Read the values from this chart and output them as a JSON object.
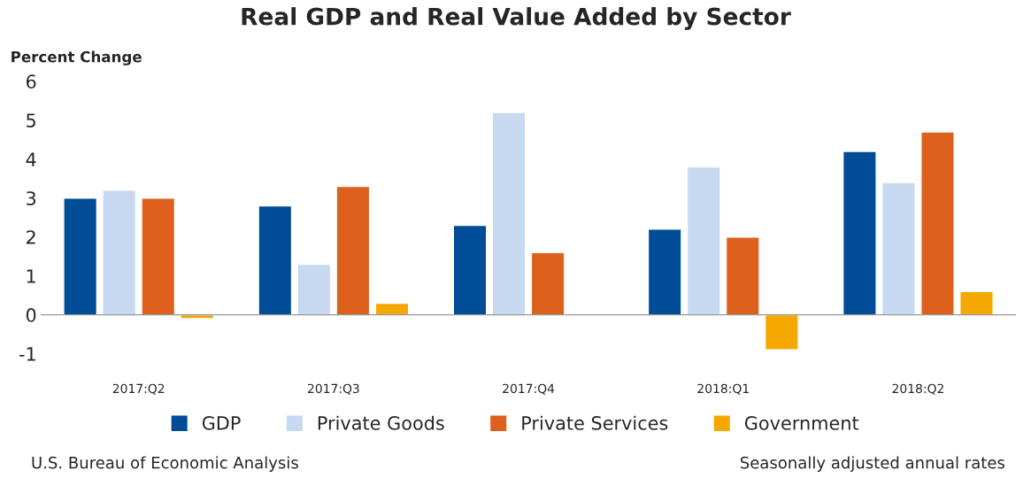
{
  "chart_data": {
    "type": "bar",
    "title": "Real GDP and Real Value Added by Sector",
    "ylabel": "Percent Change",
    "categories": [
      "2017:Q2",
      "2017:Q3",
      "2017:Q4",
      "2018:Q1",
      "2018:Q2"
    ],
    "series": [
      {
        "name": "GDP",
        "color": "#004c97",
        "values": [
          3.0,
          2.8,
          2.3,
          2.2,
          4.2
        ]
      },
      {
        "name": "Private Goods",
        "color": "#c6d9f0",
        "values": [
          3.2,
          1.3,
          5.2,
          3.8,
          3.4
        ]
      },
      {
        "name": "Private Services",
        "color": "#dd611d",
        "values": [
          3.0,
          3.3,
          1.6,
          2.0,
          4.7
        ]
      },
      {
        "name": "Government",
        "color": "#f5a800",
        "values": [
          -0.1,
          0.3,
          null,
          -0.9,
          0.6
        ]
      }
    ],
    "ylim": [
      -1,
      6
    ],
    "yticks": [
      {
        "value": -1,
        "label": "-1"
      },
      0,
      1,
      2,
      3,
      4,
      5,
      6
    ],
    "legend": "bottom",
    "annotations": [
      "U.S. Bureau of Economic Analysis",
      "Seasonally adjusted annual rates"
    ]
  }
}
